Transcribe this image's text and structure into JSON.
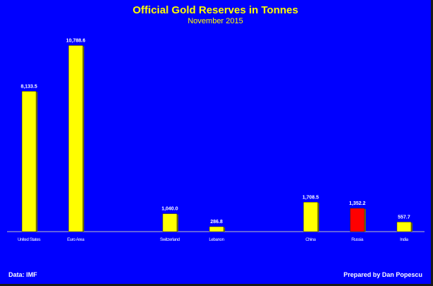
{
  "chart_data": {
    "type": "bar",
    "title": "Official Gold Reserves in Tonnes",
    "subtitle": "November 2015",
    "xlabel": "",
    "ylabel": "",
    "ylim": [
      0,
      11500
    ],
    "grid": false,
    "categories": [
      "United States",
      "Euro Area",
      "Switzerland",
      "Lebanon",
      "China",
      "Russia",
      "India"
    ],
    "values": [
      8133.5,
      10788.6,
      1040.0,
      286.8,
      1708.5,
      1352.2,
      557.7
    ],
    "value_labels": [
      "8,133.5",
      "10,788.6",
      "1,040.0",
      "286.8",
      "1,708.5",
      "1,352.2",
      "557.7"
    ],
    "bar_colors": [
      "#ffff00",
      "#ffff00",
      "#ffff00",
      "#ffff00",
      "#ffff00",
      "#ff0000",
      "#ffff00"
    ]
  },
  "footer": {
    "source": "Data: IMF",
    "credit": "Prepared by Dan Popescu"
  }
}
